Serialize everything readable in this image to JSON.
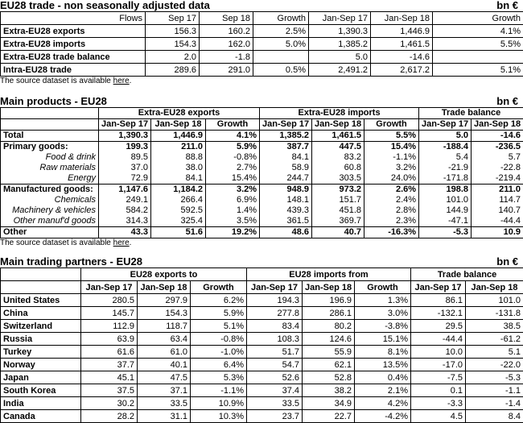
{
  "trade": {
    "title": "EU28 trade - non seasonally adjusted data",
    "unit": "bn €",
    "header": [
      "Flows",
      "Sep 17",
      "Sep 18",
      "Growth",
      "Jan-Sep 17",
      "Jan-Sep 18",
      "Growth"
    ],
    "rows": [
      [
        "Extra-EU28 exports",
        "156.3",
        "160.2",
        "2.5%",
        "1,390.3",
        "1,446.9",
        "4.1%"
      ],
      [
        "Extra-EU28 imports",
        "154.3",
        "162.0",
        "5.0%",
        "1,385.2",
        "1,461.5",
        "5.5%"
      ],
      [
        "Extra-EU28 trade balance",
        "2.0",
        "-1.8",
        null,
        "5.0",
        "-14.6",
        null
      ],
      [
        "Intra-EU28 trade",
        "289.6",
        "291.0",
        "0.5%",
        "2,491.2",
        "2,617.2",
        "5.1%"
      ]
    ],
    "note": {
      "before": "The source dataset is available ",
      "link": "here",
      "after": "."
    }
  },
  "products": {
    "title": "Main products - EU28",
    "unit": "bn €",
    "groups": [
      "Extra-EU28 exports",
      "Extra-EU28 imports",
      "Trade balance"
    ],
    "header": [
      "Jan-Sep 17",
      "Jan-Sep 18",
      "Growth",
      "Jan-Sep 17",
      "Jan-Sep 18",
      "Growth",
      "Jan-Sep 17",
      "Jan-Sep 18"
    ],
    "rows": [
      [
        "Total",
        "1,390.3",
        "1,446.9",
        "4.1%",
        "1,385.2",
        "1,461.5",
        "5.5%",
        "5.0",
        "-14.6"
      ],
      [
        "Primary goods:",
        "199.3",
        "211.0",
        "5.9%",
        "387.7",
        "447.5",
        "15.4%",
        "-188.4",
        "-236.5"
      ],
      [
        "Food & drink",
        "89.5",
        "88.8",
        "-0.8%",
        "84.1",
        "83.2",
        "-1.1%",
        "5.4",
        "5.7"
      ],
      [
        "Raw materials",
        "37.0",
        "38.0",
        "2.7%",
        "58.9",
        "60.8",
        "3.2%",
        "-21.9",
        "-22.8"
      ],
      [
        "Energy",
        "72.9",
        "84.1",
        "15.4%",
        "244.7",
        "303.5",
        "24.0%",
        "-171.8",
        "-219.4"
      ],
      [
        "Manufactured goods:",
        "1,147.6",
        "1,184.2",
        "3.2%",
        "948.9",
        "973.2",
        "2.6%",
        "198.8",
        "211.0"
      ],
      [
        "Chemicals",
        "249.1",
        "266.4",
        "6.9%",
        "148.1",
        "151.7",
        "2.4%",
        "101.0",
        "114.7"
      ],
      [
        "Machinery & vehicles",
        "584.2",
        "592.5",
        "1.4%",
        "439.3",
        "451.8",
        "2.8%",
        "144.9",
        "140.7"
      ],
      [
        "Other manuf'd goods",
        "314.3",
        "325.4",
        "3.5%",
        "361.5",
        "369.7",
        "2.3%",
        "-47.1",
        "-44.4"
      ],
      [
        "Other",
        "43.3",
        "51.6",
        "19.2%",
        "48.6",
        "40.7",
        "-16.3%",
        "-5.3",
        "10.9"
      ]
    ],
    "note": {
      "before": "The source dataset is available ",
      "link": "here",
      "after": "."
    }
  },
  "partners": {
    "title": "Main trading partners - EU28",
    "unit": "bn €",
    "groups": [
      "EU28 exports to",
      "EU28 imports from",
      "Trade balance"
    ],
    "header": [
      "Jan-Sep 17",
      "Jan-Sep 18",
      "Growth",
      "Jan-Sep 17",
      "Jan-Sep 18",
      "Growth",
      "Jan-Sep 17",
      "Jan-Sep 18"
    ],
    "rows": [
      [
        "United States",
        "280.5",
        "297.9",
        "6.2%",
        "194.3",
        "196.9",
        "1.3%",
        "86.1",
        "101.0"
      ],
      [
        "China",
        "145.7",
        "154.3",
        "5.9%",
        "277.8",
        "286.1",
        "3.0%",
        "-132.1",
        "-131.8"
      ],
      [
        "Switzerland",
        "112.9",
        "118.7",
        "5.1%",
        "83.4",
        "80.2",
        "-3.8%",
        "29.5",
        "38.5"
      ],
      [
        "Russia",
        "63.9",
        "63.4",
        "-0.8%",
        "108.3",
        "124.6",
        "15.1%",
        "-44.4",
        "-61.2"
      ],
      [
        "Turkey",
        "61.6",
        "61.0",
        "-1.0%",
        "51.7",
        "55.9",
        "8.1%",
        "10.0",
        "5.1"
      ],
      [
        "Norway",
        "37.7",
        "40.1",
        "6.4%",
        "54.7",
        "62.1",
        "13.5%",
        "-17.0",
        "-22.0"
      ],
      [
        "Japan",
        "45.1",
        "47.5",
        "5.3%",
        "52.6",
        "52.8",
        "0.4%",
        "-7.5",
        "-5.3"
      ],
      [
        "South Korea",
        "37.5",
        "37.1",
        "-1.1%",
        "37.4",
        "38.2",
        "2.1%",
        "0.1",
        "-1.1"
      ],
      [
        "India",
        "30.2",
        "33.5",
        "10.9%",
        "33.5",
        "34.9",
        "4.2%",
        "-3.3",
        "-1.4"
      ],
      [
        "Canada",
        "28.2",
        "31.1",
        "10.3%",
        "23.7",
        "22.7",
        "-4.2%",
        "4.5",
        "8.4"
      ]
    ]
  }
}
